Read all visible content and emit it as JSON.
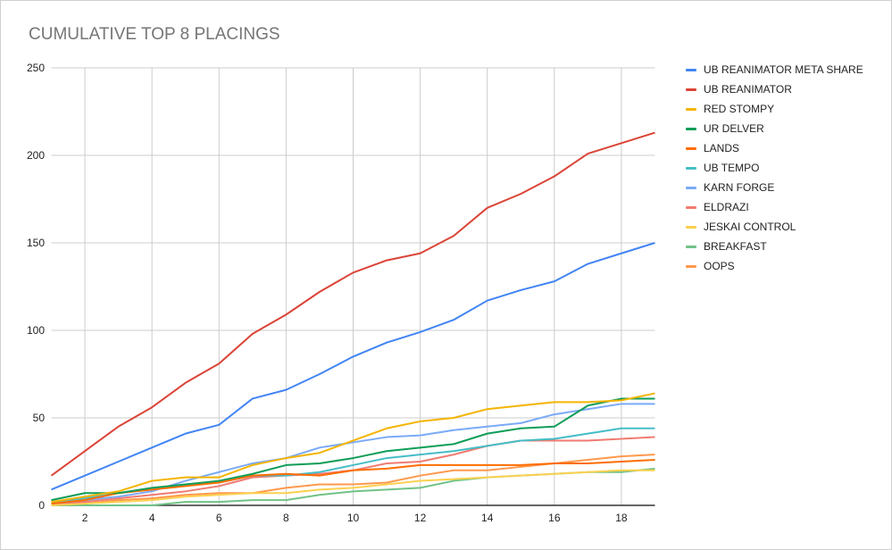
{
  "chart_data": {
    "type": "line",
    "title": "CUMULATIVE TOP 8 PLACINGS",
    "xlabel": "",
    "ylabel": "",
    "x": [
      1,
      2,
      3,
      4,
      5,
      6,
      7,
      8,
      9,
      10,
      11,
      12,
      13,
      14,
      15,
      16,
      17,
      18,
      19
    ],
    "xticks": [
      2,
      4,
      6,
      8,
      10,
      12,
      14,
      16,
      18
    ],
    "yticks": [
      0,
      50,
      100,
      150,
      200,
      250
    ],
    "xlim": [
      1,
      19
    ],
    "ylim": [
      0,
      250
    ],
    "grid": true,
    "legend": "right",
    "series": [
      {
        "name": "UB REANIMATOR META SHARE",
        "color": "#4285f4",
        "values": [
          9,
          17,
          25,
          33,
          41,
          46,
          61,
          66,
          75,
          85,
          93,
          99,
          106,
          117,
          123,
          128,
          138,
          144,
          150
        ]
      },
      {
        "name": "UB REANIMATOR",
        "color": "#db4437",
        "values": [
          17,
          31,
          45,
          56,
          70,
          81,
          98,
          109,
          122,
          133,
          140,
          144,
          154,
          170,
          178,
          188,
          201,
          207,
          213
        ]
      },
      {
        "name": "RED STOMPY",
        "color": "#f4b400",
        "values": [
          2,
          5,
          8,
          14,
          16,
          16,
          23,
          27,
          30,
          37,
          44,
          48,
          50,
          55,
          57,
          59,
          59,
          60,
          64
        ]
      },
      {
        "name": "UR DELVER",
        "color": "#0f9d58",
        "values": [
          3,
          7,
          7,
          10,
          12,
          14,
          18,
          23,
          24,
          27,
          31,
          33,
          35,
          41,
          44,
          45,
          57,
          61,
          61
        ]
      },
      {
        "name": "LANDS",
        "color": "#ff6d01",
        "values": [
          1,
          3,
          7,
          9,
          11,
          13,
          17,
          18,
          17,
          20,
          21,
          23,
          23,
          23,
          23,
          24,
          24,
          25,
          26
        ]
      },
      {
        "name": "UB TEMPO",
        "color": "#46bdc6",
        "values": [
          2,
          4,
          7,
          9,
          12,
          13,
          17,
          17,
          19,
          23,
          27,
          29,
          31,
          34,
          37,
          38,
          41,
          44,
          44
        ]
      },
      {
        "name": "KARN FORGE",
        "color": "#7baaf7",
        "values": [
          1,
          3,
          5,
          8,
          14,
          19,
          24,
          27,
          33,
          36,
          39,
          40,
          43,
          45,
          47,
          52,
          55,
          58,
          58
        ]
      },
      {
        "name": "ELDRAZI",
        "color": "#f07b72",
        "values": [
          1,
          2,
          4,
          6,
          8,
          11,
          16,
          17,
          18,
          20,
          24,
          25,
          29,
          34,
          37,
          37,
          37,
          38,
          39
        ]
      },
      {
        "name": "JESKAI CONTROL",
        "color": "#fcd04f",
        "values": [
          0,
          1,
          2,
          3,
          5,
          6,
          7,
          7,
          9,
          10,
          12,
          14,
          15,
          16,
          17,
          18,
          19,
          20,
          20
        ]
      },
      {
        "name": "BREAKFAST",
        "color": "#71c287",
        "values": [
          0,
          0,
          0,
          0,
          2,
          2,
          3,
          3,
          6,
          8,
          9,
          10,
          14,
          16,
          17,
          18,
          19,
          19,
          21
        ]
      },
      {
        "name": "OOPS",
        "color": "#ff994d",
        "values": [
          0,
          1,
          3,
          4,
          6,
          7,
          7,
          10,
          12,
          12,
          13,
          17,
          20,
          20,
          22,
          24,
          26,
          28,
          29
        ]
      }
    ]
  }
}
